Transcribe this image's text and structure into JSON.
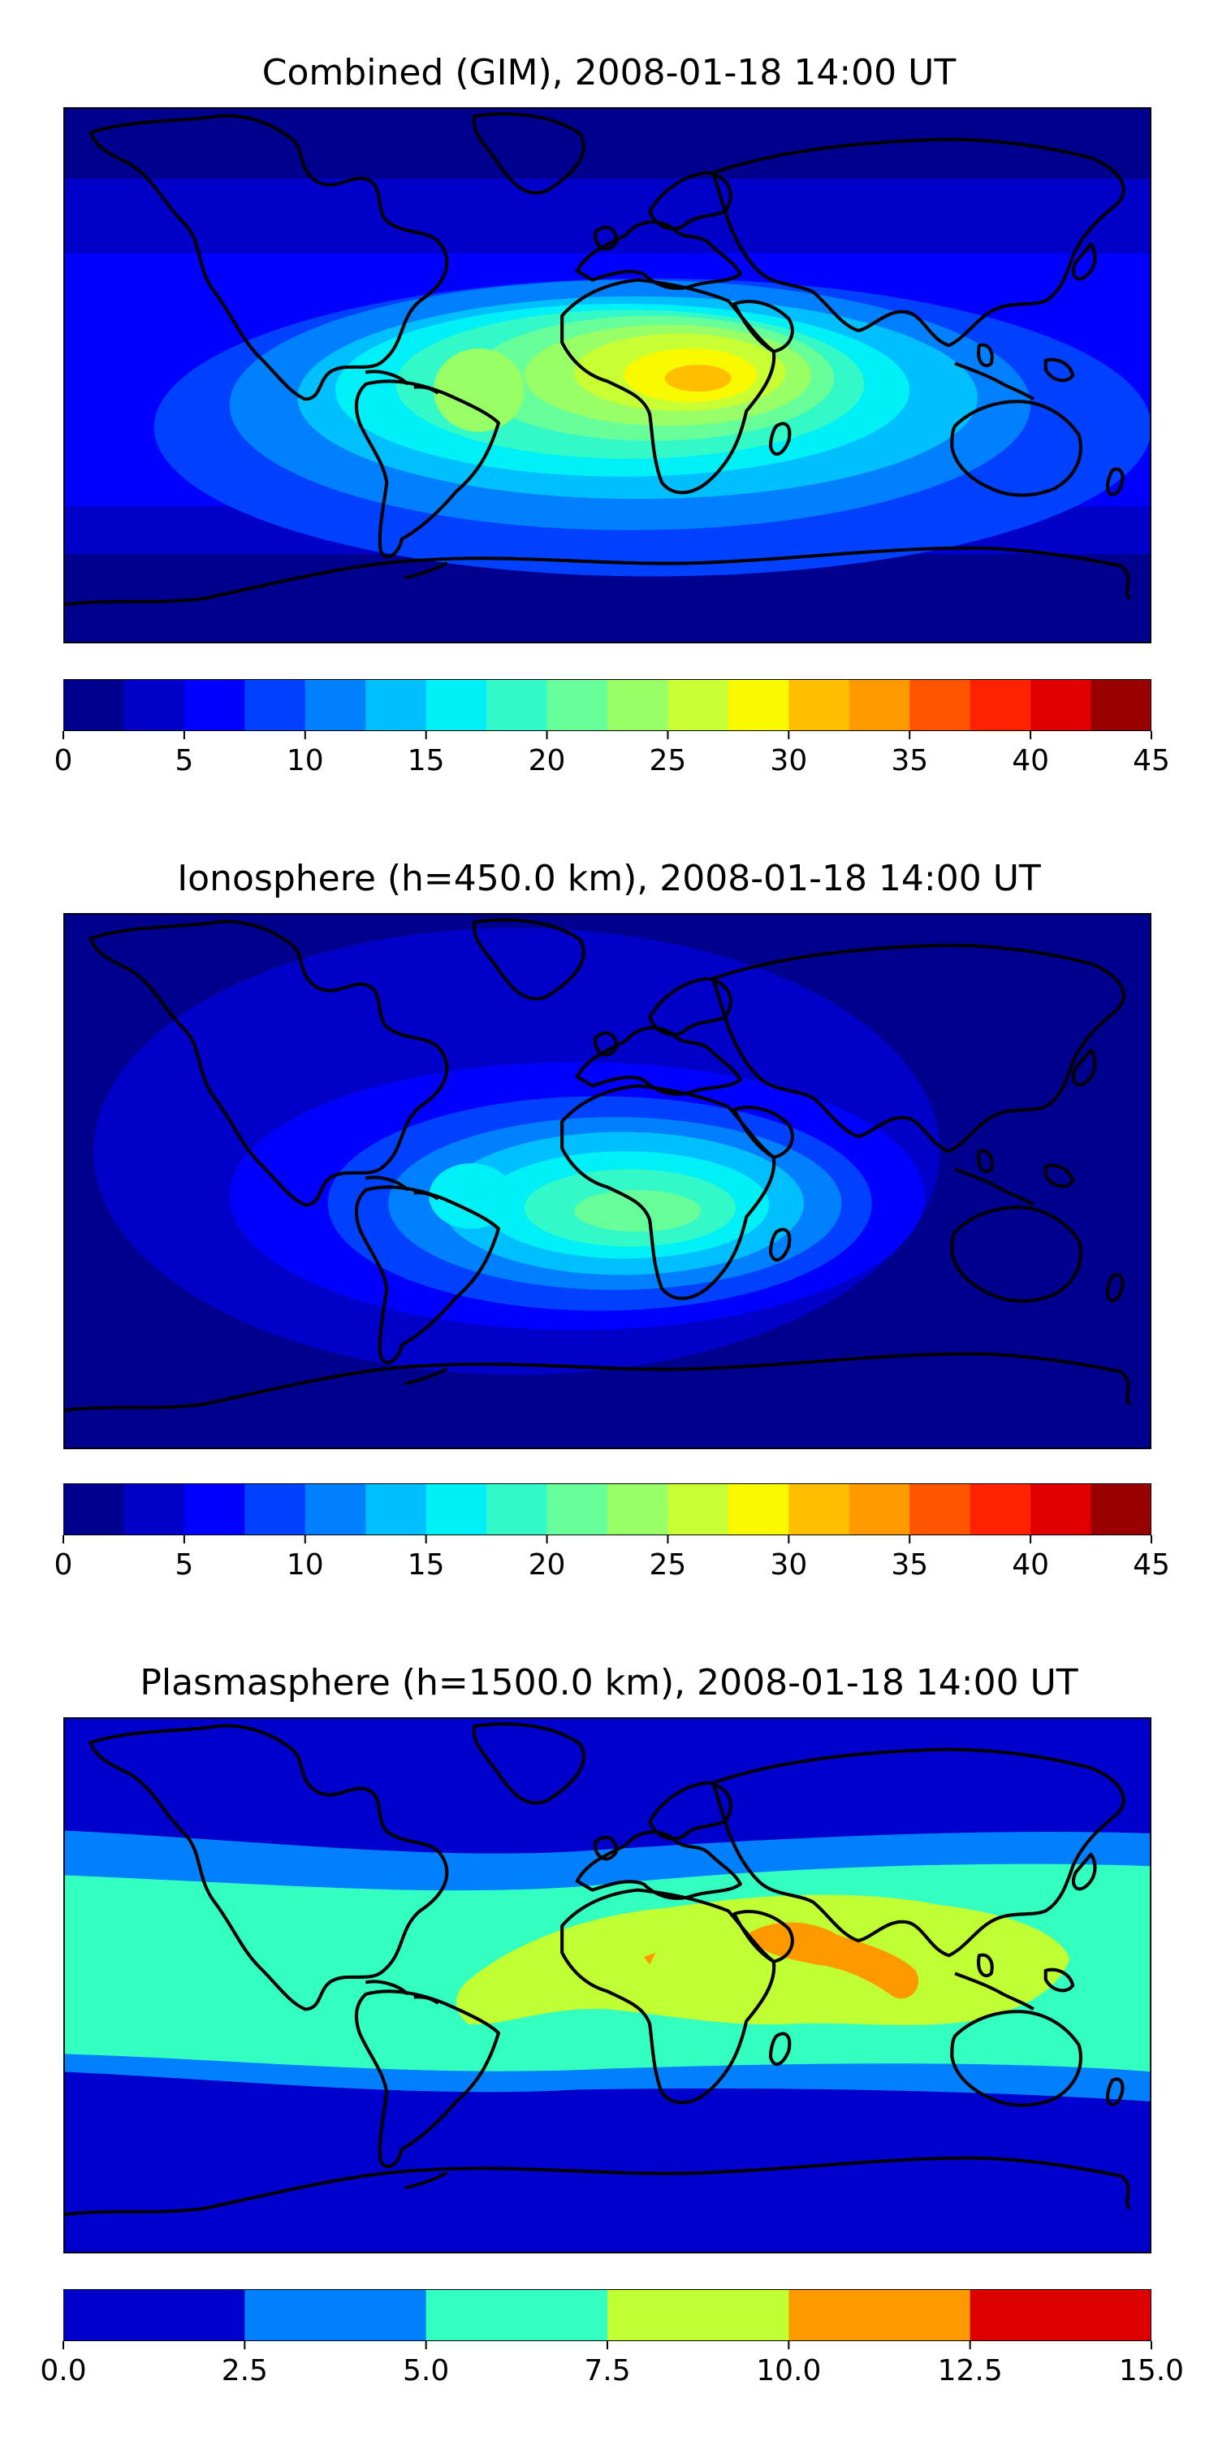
{
  "chart_data": [
    {
      "type": "heatmap",
      "title": "Combined (GIM), 2008-01-18 14:00 UT",
      "colorbar": {
        "levels": [
          0,
          2.5,
          5,
          7.5,
          10,
          12.5,
          15,
          17.5,
          20,
          22.5,
          25,
          27.5,
          30,
          32.5,
          35,
          37.5,
          40,
          42.5,
          45
        ],
        "colors": [
          "#00008f",
          "#0000c8",
          "#0000ff",
          "#0040ff",
          "#0080ff",
          "#00bfff",
          "#00f0f8",
          "#33f8c8",
          "#66ff99",
          "#99ff66",
          "#c8ff33",
          "#f8f800",
          "#ffbf00",
          "#ff9900",
          "#ff5500",
          "#ff2200",
          "#e00000",
          "#990000"
        ],
        "ticks": [
          0,
          5,
          10,
          15,
          20,
          25,
          30,
          35,
          40,
          45
        ],
        "tick_labels": [
          "0",
          "5",
          "10",
          "15",
          "20",
          "25",
          "30",
          "35",
          "40",
          "45"
        ]
      },
      "field_features": [
        {
          "lon": 5,
          "lat": 0,
          "value": 28
        },
        {
          "lon": 15,
          "lat": -2,
          "value": 31
        },
        {
          "lon": -50,
          "lat": 0,
          "value": 22
        },
        {
          "lon": 100,
          "lat": 0,
          "value": 9
        },
        {
          "lon": -150,
          "lat": 10,
          "value": 8
        },
        {
          "lon": 0,
          "lat": 60,
          "value": 6
        },
        {
          "lon": 0,
          "lat": -70,
          "value": 4
        }
      ]
    },
    {
      "type": "heatmap",
      "title": "Ionosphere  (h=450.0 km), 2008-01-18 14:00 UT",
      "colorbar": {
        "levels": [
          0,
          2.5,
          5,
          7.5,
          10,
          12.5,
          15,
          17.5,
          20,
          22.5,
          25,
          27.5,
          30,
          32.5,
          35,
          37.5,
          40,
          42.5,
          45
        ],
        "colors": [
          "#00008f",
          "#0000c8",
          "#0000ff",
          "#0040ff",
          "#0080ff",
          "#00bfff",
          "#00f0f8",
          "#33f8c8",
          "#66ff99",
          "#99ff66",
          "#c8ff33",
          "#f8f800",
          "#ffbf00",
          "#ff9900",
          "#ff5500",
          "#ff2200",
          "#e00000",
          "#990000"
        ],
        "ticks": [
          0,
          5,
          10,
          15,
          20,
          25,
          30,
          35,
          40,
          45
        ],
        "tick_labels": [
          "0",
          "5",
          "10",
          "15",
          "20",
          "25",
          "30",
          "35",
          "40",
          "45"
        ]
      },
      "field_features": [
        {
          "lon": 5,
          "lat": -5,
          "value": 21
        },
        {
          "lon": -40,
          "lat": -5,
          "value": 17
        },
        {
          "lon": 100,
          "lat": 10,
          "value": 3
        },
        {
          "lon": -150,
          "lat": 10,
          "value": 3
        },
        {
          "lon": 0,
          "lat": -60,
          "value": 6
        }
      ]
    },
    {
      "type": "heatmap",
      "title": "Plasmasphere (h=1500.0 km), 2008-01-18 14:00 UT",
      "colorbar": {
        "levels": [
          0,
          2.5,
          5,
          7.5,
          10,
          12.5,
          15
        ],
        "colors": [
          "#0000cd",
          "#0080ff",
          "#33ffc0",
          "#c0ff33",
          "#ff9900",
          "#dd0000"
        ],
        "ticks": [
          0,
          2.5,
          5,
          7.5,
          10,
          12.5,
          15
        ],
        "tick_labels": [
          "0.0",
          "2.5",
          "5.0",
          "7.5",
          "10.0",
          "12.5",
          "15.0"
        ]
      },
      "field_features": [
        {
          "lon": 75,
          "lat": 12,
          "value": 10.5
        },
        {
          "lon": 30,
          "lat": 5,
          "value": 8
        },
        {
          "lon": 0,
          "lat": 0,
          "value": 6
        },
        {
          "lon": 0,
          "lat": 45,
          "value": 2
        },
        {
          "lon": 0,
          "lat": -55,
          "value": 2
        }
      ]
    }
  ]
}
